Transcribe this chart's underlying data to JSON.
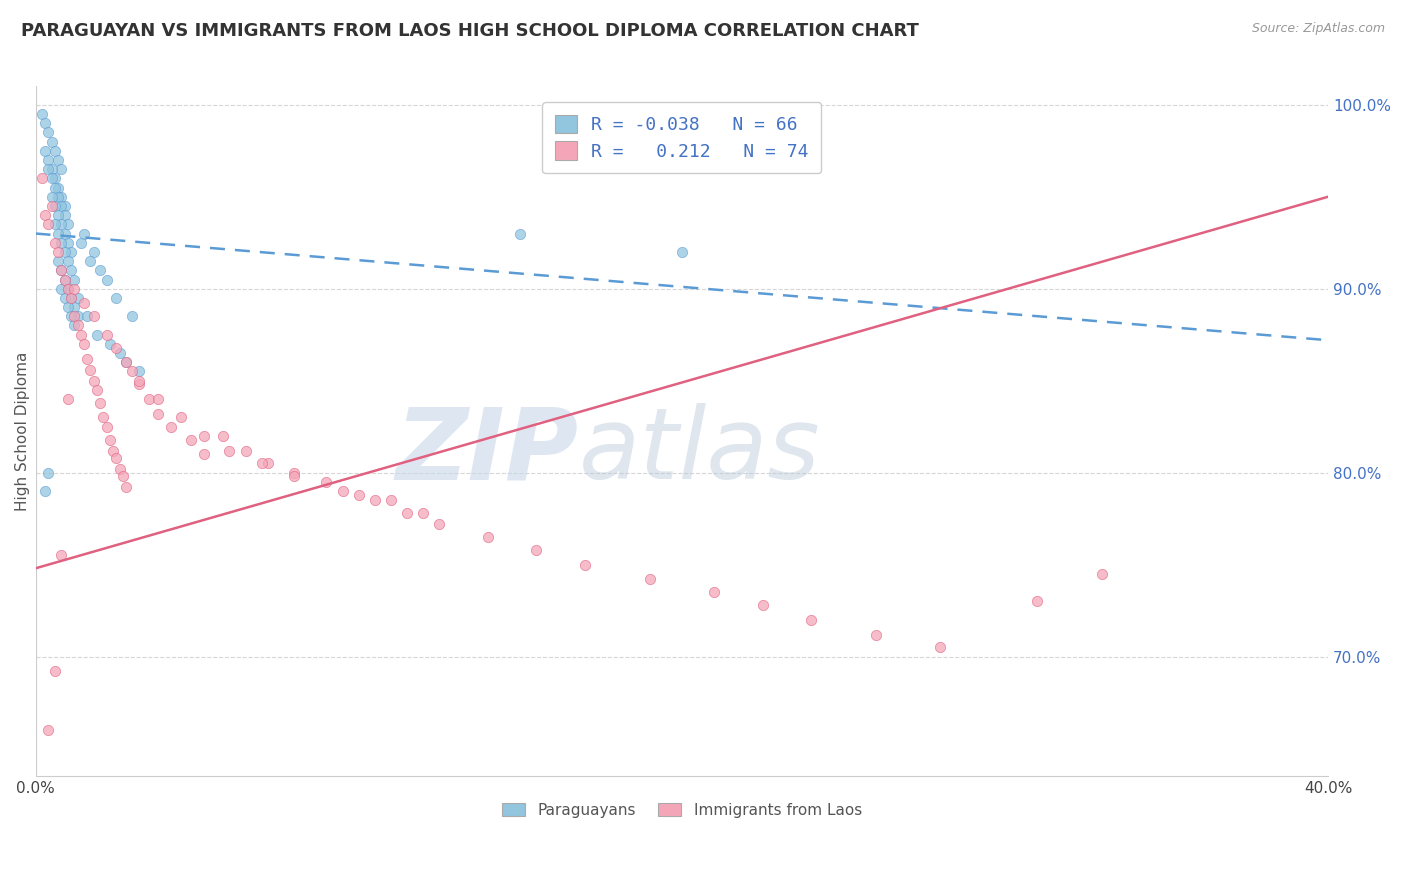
{
  "title": "PARAGUAYAN VS IMMIGRANTS FROM LAOS HIGH SCHOOL DIPLOMA CORRELATION CHART",
  "source": "Source: ZipAtlas.com",
  "ylabel": "High School Diploma",
  "xlim": [
    0.0,
    0.4
  ],
  "ylim": [
    0.635,
    1.01
  ],
  "xticks": [
    0.0,
    0.05,
    0.1,
    0.15,
    0.2,
    0.25,
    0.3,
    0.35,
    0.4
  ],
  "xtick_labels": [
    "0.0%",
    "",
    "",
    "",
    "",
    "",
    "",
    "",
    "40.0%"
  ],
  "ytick_labels": [
    "70.0%",
    "80.0%",
    "90.0%",
    "100.0%"
  ],
  "yticks": [
    0.7,
    0.8,
    0.9,
    1.0
  ],
  "blue_R": -0.038,
  "blue_N": 66,
  "pink_R": 0.212,
  "pink_N": 74,
  "blue_color": "#92c5de",
  "pink_color": "#f4a6b8",
  "blue_line_color": "#5b9bd5",
  "pink_line_color": "#e06080",
  "legend_label_blue": "Paraguayans",
  "legend_label_pink": "Immigrants from Laos",
  "watermark_zip": "ZIP",
  "watermark_atlas": "atlas",
  "blue_trend_y0": 0.93,
  "blue_trend_y1": 0.872,
  "pink_trend_y0": 0.748,
  "pink_trend_y1": 0.95,
  "blue_scatter_x": [
    0.002,
    0.003,
    0.004,
    0.005,
    0.006,
    0.007,
    0.008,
    0.003,
    0.004,
    0.005,
    0.006,
    0.007,
    0.008,
    0.009,
    0.004,
    0.005,
    0.006,
    0.007,
    0.008,
    0.009,
    0.01,
    0.005,
    0.006,
    0.007,
    0.008,
    0.009,
    0.01,
    0.011,
    0.006,
    0.007,
    0.008,
    0.009,
    0.01,
    0.011,
    0.012,
    0.007,
    0.008,
    0.009,
    0.01,
    0.011,
    0.012,
    0.013,
    0.008,
    0.009,
    0.01,
    0.011,
    0.012,
    0.015,
    0.018,
    0.02,
    0.025,
    0.03,
    0.022,
    0.017,
    0.014,
    0.016,
    0.019,
    0.023,
    0.026,
    0.013,
    0.028,
    0.032,
    0.15,
    0.2,
    0.003,
    0.004
  ],
  "blue_scatter_y": [
    0.995,
    0.99,
    0.985,
    0.98,
    0.975,
    0.97,
    0.965,
    0.975,
    0.97,
    0.965,
    0.96,
    0.955,
    0.95,
    0.945,
    0.965,
    0.96,
    0.955,
    0.95,
    0.945,
    0.94,
    0.935,
    0.95,
    0.945,
    0.94,
    0.935,
    0.93,
    0.925,
    0.92,
    0.935,
    0.93,
    0.925,
    0.92,
    0.915,
    0.91,
    0.905,
    0.915,
    0.91,
    0.905,
    0.9,
    0.895,
    0.89,
    0.885,
    0.9,
    0.895,
    0.89,
    0.885,
    0.88,
    0.93,
    0.92,
    0.91,
    0.895,
    0.885,
    0.905,
    0.915,
    0.925,
    0.885,
    0.875,
    0.87,
    0.865,
    0.895,
    0.86,
    0.855,
    0.93,
    0.92,
    0.79,
    0.8
  ],
  "pink_scatter_x": [
    0.002,
    0.003,
    0.004,
    0.005,
    0.006,
    0.007,
    0.008,
    0.009,
    0.01,
    0.011,
    0.012,
    0.013,
    0.014,
    0.015,
    0.016,
    0.017,
    0.018,
    0.019,
    0.02,
    0.021,
    0.022,
    0.023,
    0.024,
    0.025,
    0.026,
    0.027,
    0.028,
    0.03,
    0.032,
    0.035,
    0.038,
    0.042,
    0.048,
    0.052,
    0.058,
    0.065,
    0.072,
    0.08,
    0.09,
    0.1,
    0.11,
    0.12,
    0.012,
    0.015,
    0.018,
    0.022,
    0.025,
    0.028,
    0.032,
    0.038,
    0.045,
    0.052,
    0.06,
    0.07,
    0.08,
    0.095,
    0.105,
    0.115,
    0.125,
    0.14,
    0.155,
    0.17,
    0.19,
    0.21,
    0.225,
    0.24,
    0.26,
    0.28,
    0.31,
    0.33,
    0.008,
    0.01,
    0.006,
    0.004
  ],
  "pink_scatter_y": [
    0.96,
    0.94,
    0.935,
    0.945,
    0.925,
    0.92,
    0.91,
    0.905,
    0.9,
    0.895,
    0.885,
    0.88,
    0.875,
    0.87,
    0.862,
    0.856,
    0.85,
    0.845,
    0.838,
    0.83,
    0.825,
    0.818,
    0.812,
    0.808,
    0.802,
    0.798,
    0.792,
    0.855,
    0.848,
    0.84,
    0.832,
    0.825,
    0.818,
    0.81,
    0.82,
    0.812,
    0.805,
    0.8,
    0.795,
    0.788,
    0.785,
    0.778,
    0.9,
    0.892,
    0.885,
    0.875,
    0.868,
    0.86,
    0.85,
    0.84,
    0.83,
    0.82,
    0.812,
    0.805,
    0.798,
    0.79,
    0.785,
    0.778,
    0.772,
    0.765,
    0.758,
    0.75,
    0.742,
    0.735,
    0.728,
    0.72,
    0.712,
    0.705,
    0.73,
    0.745,
    0.755,
    0.84,
    0.692,
    0.66
  ]
}
